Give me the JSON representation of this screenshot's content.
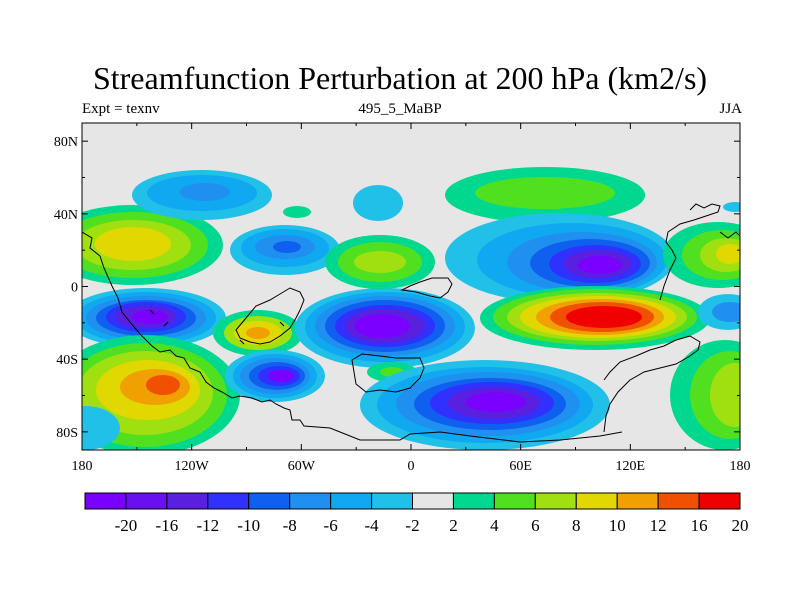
{
  "chart_data": {
    "type": "contour_map",
    "title": "Streamfunction Perturbation at 200 hPa (km2/s)",
    "subtitle_left": "Expt = texnv",
    "subtitle_center": "495_5_MaBP",
    "subtitle_right": "JJA",
    "x_ticks": [
      {
        "value": -180,
        "label": "180"
      },
      {
        "value": -120,
        "label": "120W"
      },
      {
        "value": -60,
        "label": "60W"
      },
      {
        "value": 0,
        "label": "0"
      },
      {
        "value": 60,
        "label": "60E"
      },
      {
        "value": 120,
        "label": "120E"
      },
      {
        "value": 180,
        "label": "180"
      }
    ],
    "y_ticks": [
      {
        "value": 80,
        "label": "80N"
      },
      {
        "value": 40,
        "label": "40N"
      },
      {
        "value": 0,
        "label": "0"
      },
      {
        "value": -40,
        "label": "40S"
      },
      {
        "value": -80,
        "label": "80S"
      }
    ],
    "xlim": [
      -180,
      180
    ],
    "ylim": [
      -90,
      90
    ],
    "background_color": "#e6e6e6",
    "colorbar": {
      "labels": [
        "-20",
        "-16",
        "-12",
        "-10",
        "-8",
        "-6",
        "-4",
        "-2",
        "2",
        "4",
        "6",
        "8",
        "10",
        "12",
        "16",
        "20"
      ],
      "colors": [
        "#7a00ff",
        "#6a10f0",
        "#5a20e0",
        "#3030ff",
        "#1060f0",
        "#2090f0",
        "#10a8f0",
        "#20c0e8",
        "#e6e6e6",
        "#00d890",
        "#50e020",
        "#a0e010",
        "#e0d800",
        "#f0a000",
        "#f05000",
        "#f00000"
      ]
    },
    "features": [
      {
        "name": "pos-anomaly-n-pacific-e",
        "lon": -130,
        "lat": 25,
        "peak": 10
      },
      {
        "name": "neg-anomaly-se-pacific",
        "lon": -130,
        "lat": -18,
        "peak": -20
      },
      {
        "name": "pos-anomaly-s-pacific",
        "lon": -135,
        "lat": -58,
        "peak": 12
      },
      {
        "name": "neg-anomaly-n-atlantic-w",
        "lon": -65,
        "lat": 20,
        "peak": -10
      },
      {
        "name": "neg-anomaly-s-atlantic-w",
        "lon": -70,
        "lat": -50,
        "peak": -20
      },
      {
        "name": "pos-anomaly-s-america",
        "lon": -85,
        "lat": -25,
        "peak": 10
      },
      {
        "name": "neg-anomaly-s-atlantic",
        "lon": -10,
        "lat": -22,
        "peak": -20
      },
      {
        "name": "pos-anomaly-n-africa",
        "lon": -20,
        "lat": 15,
        "peak": 8
      },
      {
        "name": "neg-anomaly-s-indian",
        "lon": 55,
        "lat": -62,
        "peak": -20
      },
      {
        "name": "neg-anomaly-asia",
        "lon": 105,
        "lat": 12,
        "peak": -20
      },
      {
        "name": "pos-anomaly-indian",
        "lon": 105,
        "lat": -18,
        "peak": 20
      },
      {
        "name": "pos-anomaly-n-eurasia",
        "lon": 70,
        "lat": 50,
        "peak": 6
      },
      {
        "name": "neg-anomaly-n-pacific-w",
        "lon": -100,
        "lat": 50,
        "peak": -8
      },
      {
        "name": "pos-anomaly-w-pacific",
        "lon": 170,
        "lat": 15,
        "peak": 10
      },
      {
        "name": "pos-anomaly-sw-pacific",
        "lon": 175,
        "lat": -55,
        "peak": 8
      }
    ]
  }
}
